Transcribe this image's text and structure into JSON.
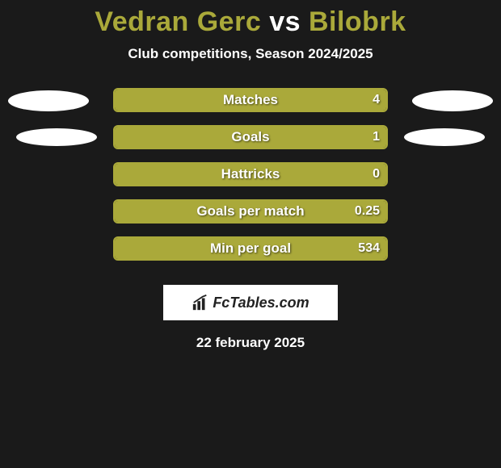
{
  "title": {
    "player1": "Vedran Gerc",
    "vs": "vs",
    "player2": "Bilobrk"
  },
  "subtitle": "Club competitions, Season 2024/2025",
  "colors": {
    "bar_fill": "#aaa93a",
    "bar_border": "#aaa93a",
    "background": "#1a1a1a",
    "text": "#ffffff",
    "ellipse": "#ffffff"
  },
  "rows": [
    {
      "label": "Matches",
      "value": "4",
      "fill_pct": 100,
      "left_ellipse": true,
      "right_ellipse": true,
      "ellipse_class": ""
    },
    {
      "label": "Goals",
      "value": "1",
      "fill_pct": 100,
      "left_ellipse": true,
      "right_ellipse": true,
      "ellipse_class": "goals"
    },
    {
      "label": "Hattricks",
      "value": "0",
      "fill_pct": 100,
      "left_ellipse": false,
      "right_ellipse": false,
      "ellipse_class": ""
    },
    {
      "label": "Goals per match",
      "value": "0.25",
      "fill_pct": 100,
      "left_ellipse": false,
      "right_ellipse": false,
      "ellipse_class": ""
    },
    {
      "label": "Min per goal",
      "value": "534",
      "fill_pct": 100,
      "left_ellipse": false,
      "right_ellipse": false,
      "ellipse_class": ""
    }
  ],
  "logo_text": "FcTables.com",
  "date": "22 february 2025"
}
